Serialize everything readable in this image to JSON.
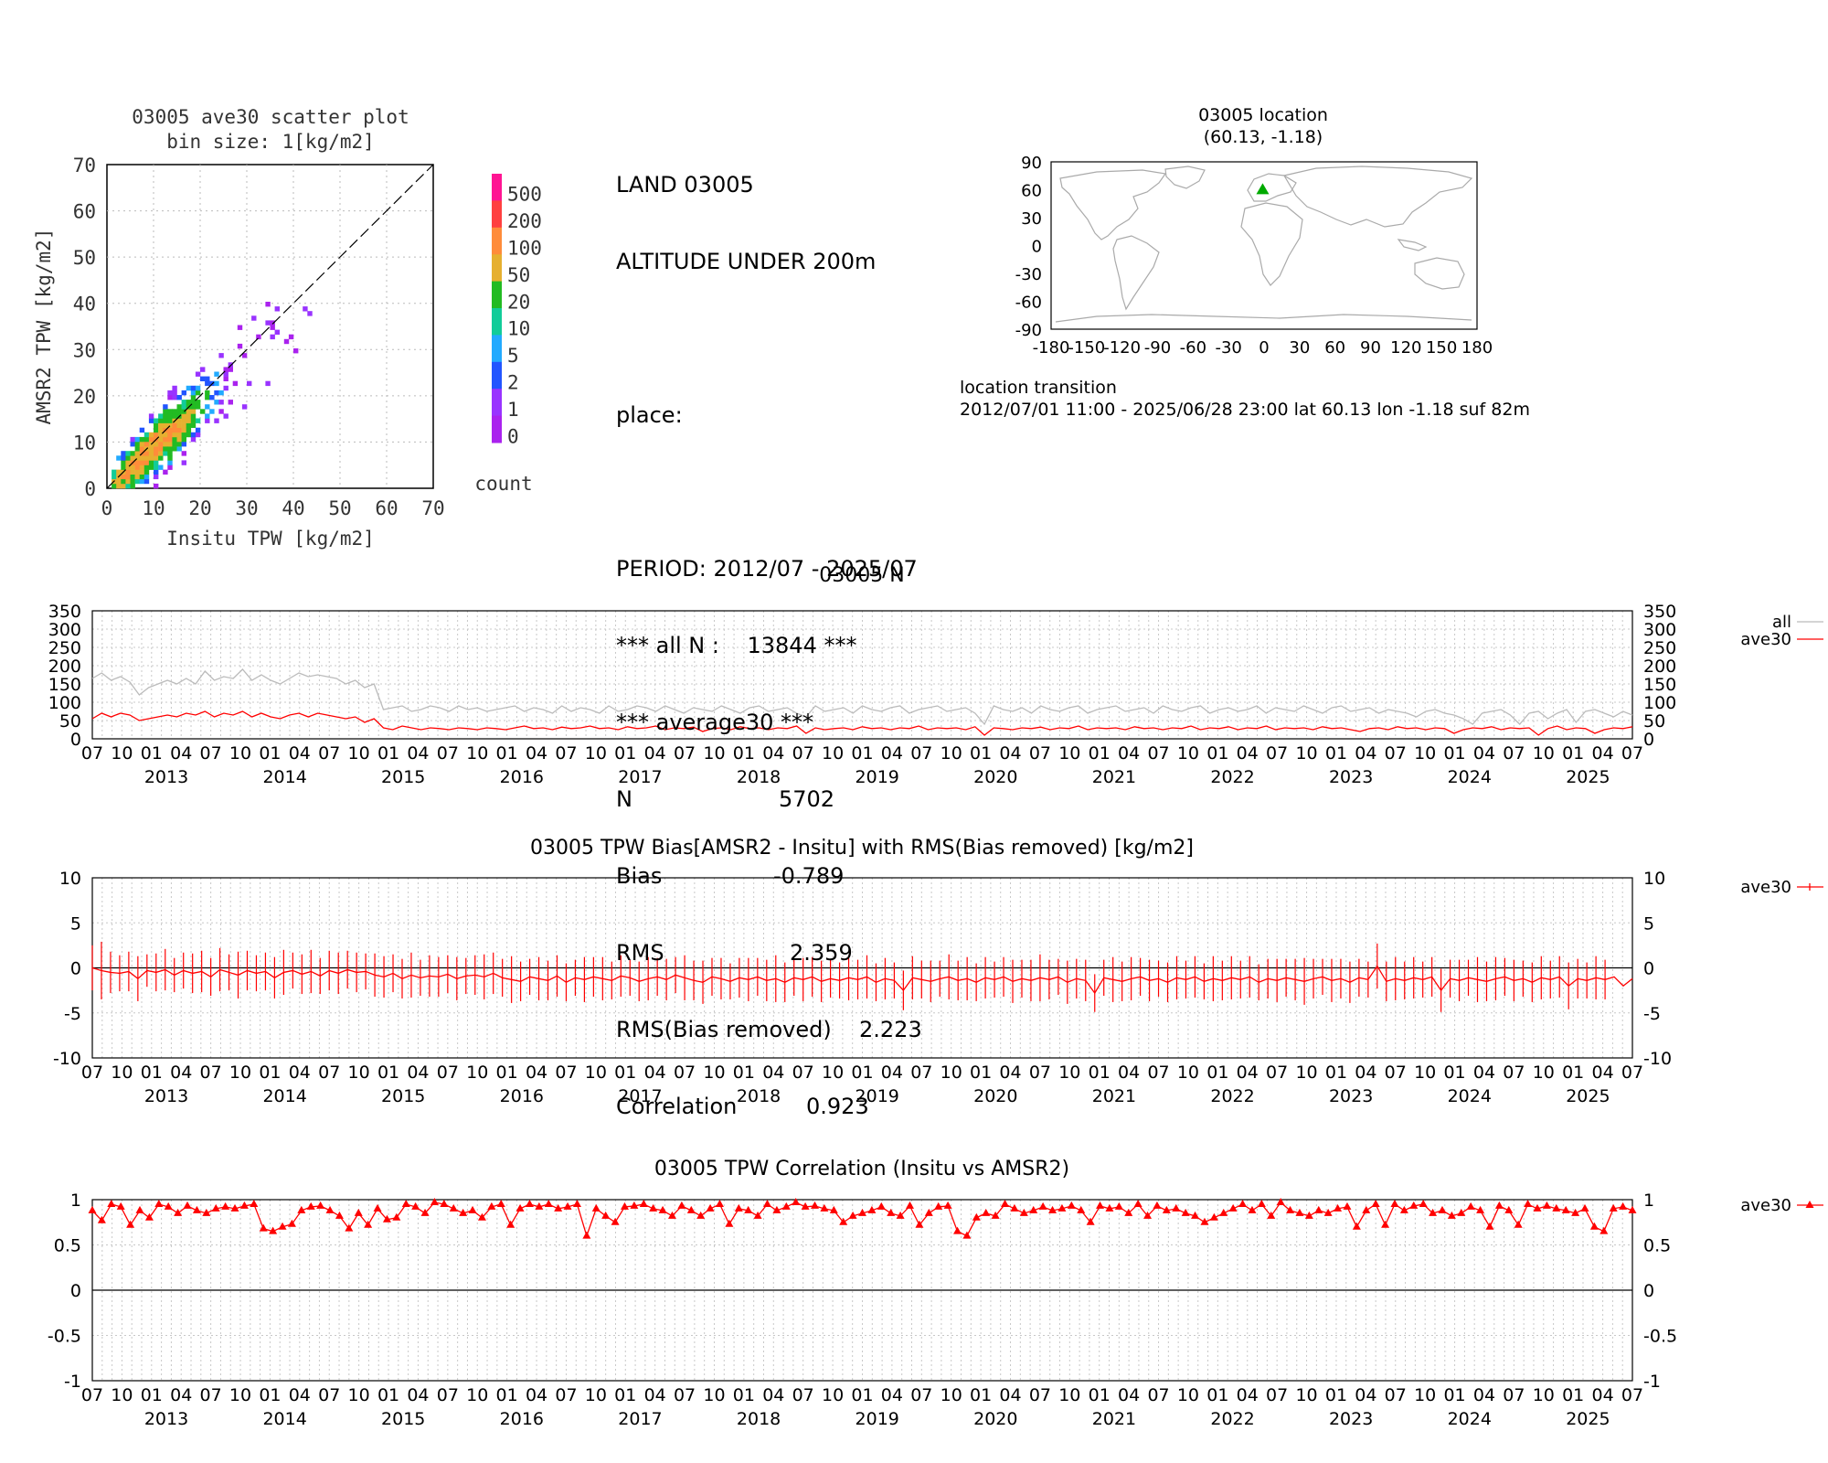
{
  "scatter": {
    "title1": "03005 ave30 scatter plot",
    "title2": "bin size: 1[kg/m2]",
    "xlabel": "Insitu TPW [kg/m2]",
    "ylabel": "AMSR2 TPW [kg/m2]",
    "ticks": [
      "0",
      "10",
      "20",
      "30",
      "40",
      "50",
      "60",
      "70"
    ],
    "colorbar_labels": [
      "500",
      "200",
      "100",
      "50",
      "20",
      "10",
      "5",
      "2",
      "1",
      "0"
    ],
    "colorbar_colors": [
      "#ff1493",
      "#ff4040",
      "#ff8c3a",
      "#e6b030",
      "#22bb22",
      "#11cc99",
      "#22aaff",
      "#2255ff",
      "#9933ff",
      "#aa22ee"
    ],
    "colorbar_title": "count"
  },
  "info": {
    "line1": "LAND 03005",
    "line2": "ALTITUDE UNDER 200m",
    "place": "place:",
    "period": "PERIOD: 2012/07 - 2025/07",
    "alln": "*** all N :    13844 ***",
    "avg": "*** average30 ***",
    "n_label": "N",
    "n_value": "5702",
    "bias_label": "Bias",
    "bias_value": "-0.789",
    "rms_label": "RMS",
    "rms_value": "2.359",
    "rmsb_label": "RMS(Bias removed)",
    "rmsb_value": "2.223",
    "corr_label": "Correlation",
    "corr_value": "0.923"
  },
  "map": {
    "title1": "03005 location",
    "title2": "(60.13, -1.18)",
    "yticks": [
      "90",
      "60",
      "30",
      "0",
      "-30",
      "-60",
      "-90"
    ],
    "xticks": [
      "-180",
      "-150",
      "-120",
      "-90",
      "-60",
      "-30",
      "0",
      "30",
      "60",
      "90",
      "120",
      "150",
      "180"
    ],
    "station": {
      "lat": 60.13,
      "lon": -1.18
    },
    "transition_title": "location transition",
    "transition_text": "2012/07/01 11:00 - 2025/06/28 23:00 lat 60.13 lon -1.18 suf 82m"
  },
  "time_axis": {
    "month_labels": [
      "07",
      "10",
      "01",
      "04",
      "07",
      "10",
      "01",
      "04",
      "07",
      "10",
      "01",
      "04",
      "07",
      "10",
      "01",
      "04",
      "07",
      "10",
      "01",
      "04",
      "07",
      "10",
      "01",
      "04",
      "07",
      "10",
      "01",
      "04",
      "07",
      "10",
      "01",
      "04",
      "07",
      "10",
      "01",
      "04",
      "07",
      "10",
      "01",
      "04",
      "07",
      "10",
      "01",
      "04",
      "07",
      "10",
      "01",
      "04",
      "07",
      "10",
      "01",
      "04",
      "07"
    ],
    "year_labels": [
      "2013",
      "2014",
      "2015",
      "2016",
      "2017",
      "2018",
      "2019",
      "2020",
      "2021",
      "2022",
      "2023",
      "2024",
      "2025"
    ]
  },
  "chart_data": [
    {
      "type": "line",
      "title": "03005 N",
      "yticks": [
        "350",
        "300",
        "250",
        "200",
        "150",
        "100",
        "50",
        "0"
      ],
      "ylim": [
        0,
        350
      ],
      "x_start": "2012/07",
      "x_end": "2025/07",
      "series": [
        {
          "name": "all",
          "color": "#bbbbbb",
          "values": [
            165,
            180,
            160,
            170,
            155,
            120,
            140,
            150,
            160,
            150,
            165,
            150,
            185,
            160,
            170,
            165,
            190,
            160,
            175,
            160,
            150,
            165,
            180,
            170,
            175,
            170,
            165,
            150,
            160,
            140,
            150,
            80,
            85,
            90,
            75,
            80,
            90,
            85,
            75,
            90,
            80,
            85,
            75,
            80,
            85,
            90,
            75,
            85,
            80,
            70,
            90,
            75,
            85,
            80,
            70,
            90,
            75,
            80,
            90,
            85,
            75,
            90,
            80,
            70,
            85,
            80,
            75,
            90,
            80,
            70,
            85,
            90,
            75,
            80,
            85,
            70,
            60,
            90,
            75,
            80,
            85,
            70,
            90,
            80,
            75,
            85,
            90,
            70,
            80,
            85,
            90,
            75,
            80,
            85,
            70,
            40,
            90,
            80,
            75,
            85,
            70,
            90,
            80,
            75,
            85,
            90,
            70,
            80,
            85,
            90,
            75,
            80,
            85,
            70,
            90,
            80,
            75,
            85,
            90,
            70,
            80,
            85,
            75,
            80,
            90,
            70,
            85,
            80,
            75,
            90,
            80,
            70,
            85,
            90,
            75,
            80,
            85,
            70,
            80,
            75,
            70,
            60,
            75,
            80,
            70,
            65,
            55,
            40,
            70,
            75,
            80,
            65,
            40,
            70,
            75,
            55,
            70,
            80,
            45,
            75,
            80,
            70,
            60,
            75,
            65
          ]
        },
        {
          "name": "ave30",
          "color": "#ff0000",
          "values": [
            55,
            70,
            60,
            70,
            65,
            50,
            55,
            60,
            65,
            60,
            70,
            65,
            75,
            60,
            70,
            65,
            75,
            60,
            70,
            60,
            55,
            65,
            70,
            60,
            70,
            65,
            60,
            55,
            60,
            45,
            55,
            30,
            25,
            35,
            30,
            25,
            30,
            28,
            25,
            30,
            28,
            25,
            30,
            28,
            25,
            30,
            35,
            28,
            30,
            25,
            32,
            28,
            30,
            35,
            28,
            30,
            25,
            33,
            28,
            30,
            35,
            25,
            30,
            28,
            32,
            20,
            28,
            30,
            25,
            33,
            28,
            30,
            25,
            30,
            28,
            35,
            15,
            30,
            25,
            28,
            30,
            25,
            33,
            28,
            30,
            25,
            30,
            28,
            35,
            25,
            30,
            28,
            30,
            25,
            33,
            10,
            30,
            28,
            25,
            30,
            28,
            32,
            25,
            30,
            28,
            35,
            25,
            30,
            28,
            30,
            25,
            33,
            28,
            30,
            25,
            30,
            28,
            35,
            25,
            30,
            28,
            33,
            25,
            30,
            28,
            35,
            25,
            30,
            28,
            30,
            25,
            33,
            28,
            30,
            25,
            20,
            28,
            30,
            25,
            33,
            28,
            30,
            25,
            30,
            28,
            15,
            25,
            30,
            28,
            33,
            25,
            30,
            28,
            30,
            10,
            28,
            35,
            25,
            30,
            28,
            15,
            25,
            30,
            28,
            33
          ]
        }
      ]
    },
    {
      "type": "line",
      "title": "03005 TPW Bias[AMSR2 - Insitu] with RMS(Bias removed) [kg/m2]",
      "yticks": [
        "10",
        "5",
        "0",
        "-5",
        "-10"
      ],
      "ylim": [
        -10,
        10
      ],
      "series": [
        {
          "name": "ave30",
          "color": "#ff0000",
          "values": [
            0.0,
            -0.3,
            -0.5,
            -0.6,
            -0.4,
            -1.2,
            -0.3,
            -0.5,
            -0.2,
            -0.8,
            -0.3,
            -0.6,
            -0.4,
            -1.0,
            -0.2,
            -0.5,
            -0.8,
            -0.3,
            -0.6,
            -0.4,
            -1.1,
            -0.5,
            -0.3,
            -0.7,
            -0.4,
            -0.9,
            -0.3,
            -0.6,
            -0.2,
            -0.5,
            -0.4,
            -0.8,
            -1.0,
            -0.6,
            -1.2,
            -0.8,
            -1.1,
            -0.9,
            -1.0,
            -0.7,
            -1.2,
            -0.9,
            -0.8,
            -1.0,
            -0.6,
            -1.1,
            -1.3,
            -1.5,
            -1.0,
            -1.2,
            -1.4,
            -0.9,
            -1.6,
            -1.1,
            -1.3,
            -1.0,
            -1.2,
            -1.4,
            -0.9,
            -1.1,
            -1.5,
            -1.2,
            -1.0,
            -1.3,
            -0.8,
            -1.1,
            -1.4,
            -1.6,
            -1.0,
            -1.2,
            -1.5,
            -1.1,
            -1.3,
            -1.0,
            -1.4,
            -1.2,
            -1.6,
            -1.1,
            -1.3,
            -1.0,
            -1.5,
            -1.2,
            -1.4,
            -1.1,
            -1.3,
            -1.0,
            -1.6,
            -1.2,
            -1.4,
            -2.5,
            -1.1,
            -1.3,
            -1.5,
            -1.2,
            -1.0,
            -1.4,
            -1.2,
            -1.6,
            -1.1,
            -1.3,
            -1.0,
            -1.5,
            -1.2,
            -1.4,
            -1.1,
            -1.3,
            -1.0,
            -1.6,
            -1.2,
            -1.4,
            -2.8,
            -1.1,
            -1.3,
            -1.5,
            -1.2,
            -1.0,
            -1.4,
            -1.2,
            -1.6,
            -1.1,
            -1.3,
            -1.0,
            -1.5,
            -1.2,
            -1.4,
            -1.1,
            -1.3,
            -1.0,
            -1.6,
            -1.2,
            -1.4,
            -1.1,
            -1.3,
            -1.5,
            -1.2,
            -1.0,
            -1.4,
            -1.2,
            -1.6,
            -1.1,
            -1.3,
            0.2,
            -1.5,
            -1.2,
            -1.4,
            -1.1,
            -1.3,
            -1.0,
            -2.5,
            -1.2,
            -1.4,
            -1.1,
            -1.3,
            -1.5,
            -1.2,
            -1.0,
            -1.4,
            -1.2,
            -1.6,
            -1.1,
            -1.3,
            -1.0,
            -2.0,
            -1.2,
            -1.4,
            -1.1,
            -1.3,
            -1.0,
            -2.0,
            -1.2
          ]
        },
        {
          "name": "rms",
          "color": "#ff0000",
          "values": [
            2.5,
            3.2,
            2.3,
            2.0,
            2.2,
            2.5,
            1.8,
            2.1,
            2.3,
            1.9,
            2.0,
            2.2,
            2.3,
            2.1,
            2.4,
            2.0,
            2.6,
            2.2,
            2.0,
            2.1,
            2.3,
            2.5,
            2.0,
            2.2,
            2.4,
            2.0,
            2.2,
            2.3,
            2.1,
            2.2,
            2.0,
            2.4,
            2.3,
            2.1,
            2.2,
            2.5,
            2.0,
            2.3,
            2.2,
            2.1,
            2.4,
            2.0,
            2.2,
            2.5,
            2.3,
            2.1,
            2.6,
            2.2,
            2.0,
            2.4,
            2.2,
            2.3,
            2.1,
            2.0,
            2.5,
            2.2,
            2.4,
            2.1,
            2.3,
            2.0,
            2.2,
            2.4,
            2.1,
            2.3,
            2.0,
            2.5,
            2.2,
            2.4,
            2.1,
            2.3,
            2.0,
            2.2,
            2.4,
            2.1,
            2.3,
            2.6,
            2.2,
            2.0,
            2.4,
            2.2,
            2.3,
            2.1,
            2.0,
            2.5,
            2.2,
            2.4,
            2.1,
            2.3,
            2.0,
            2.2,
            2.4,
            2.1,
            2.3,
            2.0,
            2.5,
            2.2,
            2.4,
            2.1,
            2.3,
            2.0,
            2.2,
            2.4,
            2.1,
            2.3,
            2.6,
            2.2,
            2.0,
            2.4,
            2.2,
            2.3,
            2.1,
            2.0,
            2.5,
            2.2,
            2.4,
            2.1,
            2.3,
            2.0,
            2.2,
            2.4,
            2.1,
            2.3,
            2.0,
            2.5,
            2.2,
            2.4,
            2.1,
            2.3,
            2.0,
            2.2,
            2.4,
            2.1,
            2.3,
            2.6,
            2.2,
            2.0,
            2.4,
            2.2,
            2.3,
            2.1,
            2.0,
            2.5,
            2.2,
            2.4,
            2.1,
            2.3,
            2.0,
            2.2,
            2.4,
            2.1,
            2.3,
            2.0,
            2.5,
            2.2,
            2.4,
            2.1,
            2.3,
            2.0,
            2.2,
            2.4,
            2.1,
            2.3,
            2.6,
            2.2,
            2.0,
            2.4,
            2.2
          ]
        }
      ]
    },
    {
      "type": "line",
      "title": "03005 TPW Correlation (Insitu vs AMSR2)",
      "yticks": [
        "1",
        "0.5",
        "0",
        "-0.5",
        "-1"
      ],
      "ylim": [
        -1,
        1
      ],
      "series": [
        {
          "name": "ave30",
          "color": "#ff0000",
          "values": [
            0.88,
            0.77,
            0.95,
            0.92,
            0.72,
            0.88,
            0.8,
            0.95,
            0.92,
            0.85,
            0.93,
            0.88,
            0.85,
            0.9,
            0.92,
            0.9,
            0.93,
            0.95,
            0.68,
            0.65,
            0.7,
            0.73,
            0.88,
            0.92,
            0.93,
            0.88,
            0.82,
            0.68,
            0.85,
            0.72,
            0.9,
            0.78,
            0.8,
            0.95,
            0.92,
            0.85,
            0.97,
            0.95,
            0.9,
            0.85,
            0.88,
            0.8,
            0.92,
            0.95,
            0.72,
            0.9,
            0.95,
            0.92,
            0.95,
            0.9,
            0.92,
            0.95,
            0.6,
            0.9,
            0.82,
            0.75,
            0.92,
            0.93,
            0.95,
            0.9,
            0.88,
            0.82,
            0.93,
            0.88,
            0.82,
            0.9,
            0.95,
            0.73,
            0.9,
            0.88,
            0.82,
            0.95,
            0.88,
            0.92,
            0.97,
            0.92,
            0.93,
            0.9,
            0.88,
            0.75,
            0.82,
            0.85,
            0.88,
            0.92,
            0.85,
            0.82,
            0.93,
            0.72,
            0.85,
            0.92,
            0.93,
            0.65,
            0.6,
            0.8,
            0.85,
            0.82,
            0.95,
            0.9,
            0.85,
            0.88,
            0.92,
            0.88,
            0.9,
            0.93,
            0.88,
            0.75,
            0.93,
            0.9,
            0.92,
            0.85,
            0.95,
            0.82,
            0.93,
            0.88,
            0.9,
            0.85,
            0.82,
            0.75,
            0.8,
            0.85,
            0.9,
            0.95,
            0.88,
            0.95,
            0.82,
            0.97,
            0.88,
            0.85,
            0.82,
            0.88,
            0.85,
            0.9,
            0.92,
            0.7,
            0.88,
            0.95,
            0.72,
            0.95,
            0.88,
            0.93,
            0.95,
            0.85,
            0.88,
            0.82,
            0.85,
            0.92,
            0.88,
            0.7,
            0.93,
            0.88,
            0.72,
            0.95,
            0.9,
            0.93,
            0.9,
            0.88,
            0.85,
            0.9,
            0.7,
            0.65,
            0.9,
            0.92,
            0.88
          ]
        }
      ]
    }
  ]
}
